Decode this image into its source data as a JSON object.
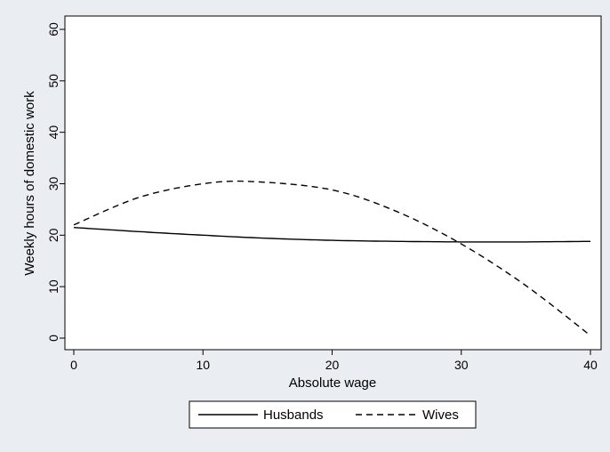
{
  "chart_data": {
    "type": "line",
    "title": "",
    "xlabel": "Absolute wage",
    "ylabel": "Weekly hours of domestic work",
    "xlim": [
      0,
      40
    ],
    "ylim": [
      0,
      60
    ],
    "x_ticks": [
      0,
      10,
      20,
      30,
      40
    ],
    "y_ticks": [
      0,
      10,
      20,
      30,
      40,
      50,
      60
    ],
    "grid": false,
    "legend_position": "bottom",
    "colors": {
      "background": "#eaeef2",
      "plot_background": "#ffffff",
      "line": "#000000"
    },
    "series": [
      {
        "name": "Husbands",
        "style": "solid",
        "x": [
          0,
          5,
          10,
          15,
          20,
          25,
          30,
          35,
          40
        ],
        "y": [
          21.5,
          20.7,
          20.0,
          19.4,
          19.0,
          18.8,
          18.7,
          18.7,
          18.8
        ]
      },
      {
        "name": "Wives",
        "style": "dashed",
        "x": [
          0,
          5,
          10,
          14,
          20,
          25,
          30,
          35,
          40
        ],
        "y": [
          22.0,
          27.3,
          30.0,
          30.4,
          28.8,
          24.6,
          18.3,
          10.2,
          0.5
        ]
      }
    ]
  }
}
